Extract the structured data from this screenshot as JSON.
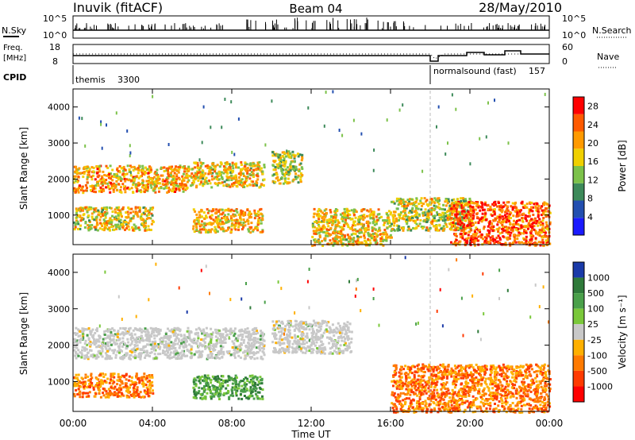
{
  "header": {
    "station": "Inuvik (fitACF)",
    "beam": "Beam 04",
    "date": "28/May/2010"
  },
  "summary": {
    "nsky_label": "N.Sky",
    "nsky_ticks": [
      "10^5",
      "10^0"
    ],
    "nsearch_label": "N.Search",
    "freq_label": "Freq.",
    "freq_unit": "[MHz]",
    "freq_ticks": [
      "18",
      "8"
    ],
    "nave_label": "Nave",
    "nave_ticks": [
      "60",
      "0"
    ],
    "cpid_label": "CPID",
    "cpid_segments": [
      {
        "name": "themis",
        "id": "3300"
      },
      {
        "name": "normalsound (fast)",
        "id": "157"
      }
    ],
    "cpid_change_hour": 18.0
  },
  "panels": {
    "power_ylabel": "Slant Range [km]",
    "velocity_ylabel": "Slant Range [km]",
    "xlabel": "Time UT",
    "power_colorbar_label": "Power [dB]",
    "velocity_colorbar_label": "Velocity [m s⁻¹]"
  },
  "chart_data": [
    {
      "type": "heatmap",
      "name": "power",
      "x_ticks": [
        "00:00",
        "04:00",
        "08:00",
        "12:00",
        "16:00",
        "20:00",
        "00:00"
      ],
      "x_range_hours": [
        0,
        24
      ],
      "y_ticks": [
        1000,
        2000,
        3000,
        4000
      ],
      "y_range_km": [
        180,
        4500
      ],
      "colorbar": {
        "label": "Power [dB]",
        "ticks": [
          4,
          8,
          12,
          16,
          20,
          24,
          28
        ],
        "range": [
          0,
          30
        ],
        "colors": [
          "#1a1aff",
          "#234fb0",
          "#3d8a5a",
          "#7cc24a",
          "#f0d000",
          "#ff9a00",
          "#ff5a00",
          "#ff0000"
        ]
      },
      "echo_bands": [
        {
          "t0": 0.0,
          "t1": 5.8,
          "r0": 1650,
          "r1": 2400,
          "level": 20
        },
        {
          "t0": 5.8,
          "t1": 9.6,
          "r0": 1800,
          "r1": 2500,
          "level": 18
        },
        {
          "t0": 0.0,
          "t1": 4.0,
          "r0": 600,
          "r1": 1250,
          "level": 17
        },
        {
          "t0": 6.0,
          "t1": 9.5,
          "r0": 550,
          "r1": 1200,
          "level": 19
        },
        {
          "t0": 10.0,
          "t1": 11.5,
          "r0": 1900,
          "r1": 2800,
          "level": 15
        },
        {
          "t0": 12.0,
          "t1": 16.0,
          "r0": 180,
          "r1": 1200,
          "level": 18
        },
        {
          "t0": 16.0,
          "t1": 20.0,
          "r0": 600,
          "r1": 1500,
          "level": 16
        },
        {
          "t0": 19.0,
          "t1": 24.0,
          "r0": 180,
          "r1": 1400,
          "level": 24
        }
      ]
    },
    {
      "type": "heatmap",
      "name": "velocity",
      "x_ticks": [
        "00:00",
        "04:00",
        "08:00",
        "12:00",
        "16:00",
        "20:00",
        "00:00"
      ],
      "x_range_hours": [
        0,
        24
      ],
      "y_ticks": [
        1000,
        2000,
        3000,
        4000
      ],
      "y_range_km": [
        180,
        4500
      ],
      "colorbar": {
        "label": "Velocity [m s⁻¹]",
        "ticks": [
          "1000",
          "500",
          "100",
          "25",
          "-25",
          "-100",
          "-500",
          "-1000"
        ],
        "colors": [
          "#1a3aa8",
          "#2f7a3a",
          "#4aa04a",
          "#7ac83a",
          "#c8c8c8",
          "#ffb000",
          "#ff7a00",
          "#ff3a00",
          "#ff0000"
        ]
      },
      "echo_bands": [
        {
          "t0": 0.0,
          "t1": 9.6,
          "r0": 1650,
          "r1": 2500,
          "class": "ground"
        },
        {
          "t0": 10.0,
          "t1": 14.0,
          "r0": 1800,
          "r1": 2700,
          "class": "ground"
        },
        {
          "t0": 0.0,
          "t1": 4.0,
          "r0": 600,
          "r1": 1250,
          "class": "away"
        },
        {
          "t0": 6.0,
          "t1": 9.5,
          "r0": 550,
          "r1": 1200,
          "class": "toward"
        },
        {
          "t0": 16.0,
          "t1": 24.0,
          "r0": 180,
          "r1": 1500,
          "class": "away"
        }
      ]
    }
  ]
}
